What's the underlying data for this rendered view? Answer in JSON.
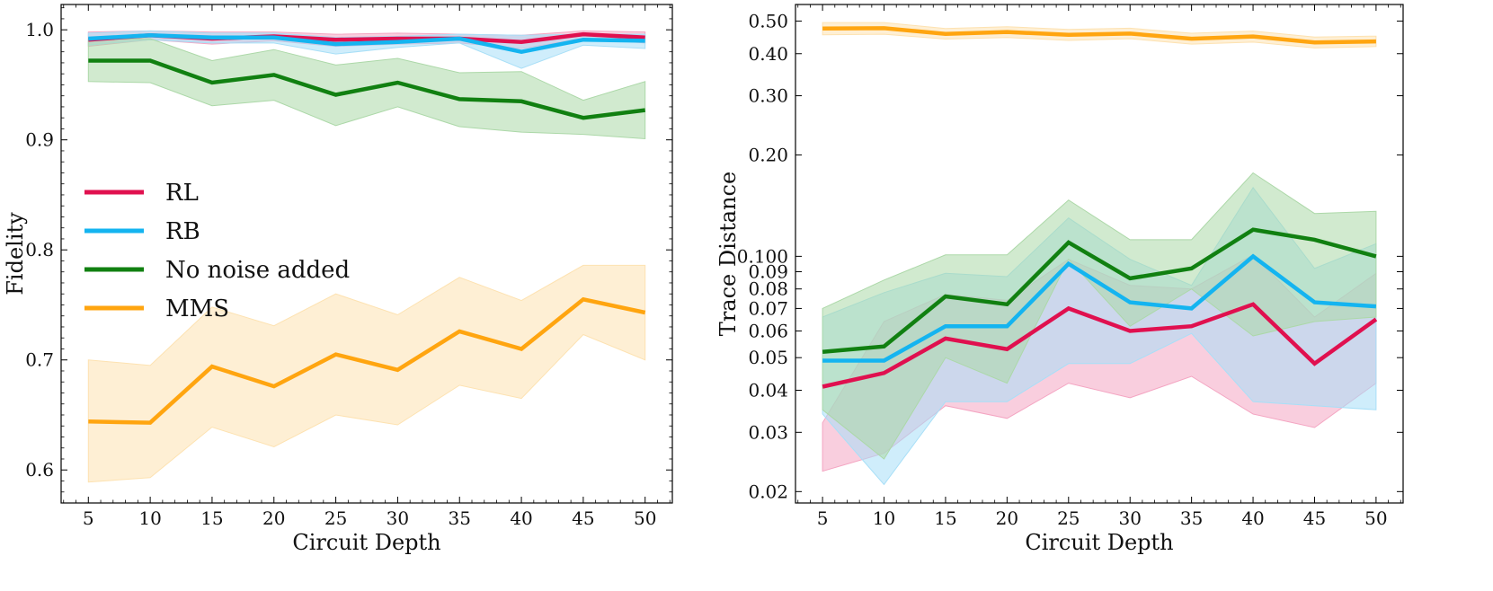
{
  "chart_data": [
    {
      "type": "line",
      "title": "",
      "xlabel": "Circuit Depth",
      "ylabel": "Fidelity",
      "yscale": "linear",
      "xlim": [
        2.8,
        52.2
      ],
      "ylim": [
        0.57,
        1.023
      ],
      "x_ticks": [
        5,
        10,
        15,
        20,
        25,
        30,
        35,
        40,
        45,
        50
      ],
      "y_ticks": [
        0.6,
        0.7,
        0.8,
        0.9,
        1.0
      ],
      "y_tick_labels": [
        "0.6",
        "0.7",
        "0.8",
        "0.9",
        "1.0"
      ],
      "legend_position": "center-left",
      "x": [
        5,
        10,
        15,
        20,
        25,
        30,
        35,
        40,
        45,
        50
      ],
      "series": [
        {
          "name": "RL",
          "color": "#e0104f",
          "fill": "#f4a5c2",
          "values": [
            0.991,
            0.995,
            0.992,
            0.994,
            0.991,
            0.992,
            0.992,
            0.989,
            0.996,
            0.993
          ],
          "lower": [
            0.985,
            0.991,
            0.987,
            0.99,
            0.985,
            0.987,
            0.988,
            0.983,
            0.992,
            0.988
          ],
          "upper": [
            0.998,
            0.999,
            0.998,
            0.998,
            0.996,
            0.997,
            0.996,
            0.995,
            0.999,
            0.998
          ]
        },
        {
          "name": "RB",
          "color": "#14b4f0",
          "fill": "#a8dff7",
          "values": [
            0.992,
            0.995,
            0.993,
            0.993,
            0.987,
            0.989,
            0.992,
            0.98,
            0.991,
            0.99
          ],
          "lower": [
            0.986,
            0.991,
            0.988,
            0.988,
            0.978,
            0.984,
            0.988,
            0.965,
            0.986,
            0.983
          ],
          "upper": [
            0.997,
            0.999,
            0.997,
            0.997,
            0.993,
            0.994,
            0.996,
            0.995,
            0.996,
            0.996
          ]
        },
        {
          "name": "No noise added",
          "color": "#118011",
          "fill": "#acd8a8",
          "values": [
            0.972,
            0.972,
            0.952,
            0.959,
            0.941,
            0.952,
            0.937,
            0.935,
            0.92,
            0.927
          ],
          "lower": [
            0.953,
            0.952,
            0.931,
            0.936,
            0.913,
            0.93,
            0.912,
            0.907,
            0.905,
            0.901
          ],
          "upper": [
            0.991,
            0.992,
            0.972,
            0.982,
            0.968,
            0.974,
            0.961,
            0.962,
            0.936,
            0.953
          ]
        },
        {
          "name": "MMS",
          "color": "#ffa510",
          "fill": "#fde2b1",
          "values": [
            0.644,
            0.643,
            0.694,
            0.676,
            0.705,
            0.691,
            0.726,
            0.71,
            0.755,
            0.743
          ],
          "lower": [
            0.589,
            0.593,
            0.639,
            0.621,
            0.65,
            0.641,
            0.677,
            0.665,
            0.723,
            0.7
          ],
          "upper": [
            0.7,
            0.695,
            0.748,
            0.731,
            0.76,
            0.741,
            0.775,
            0.754,
            0.786,
            0.786
          ]
        }
      ]
    },
    {
      "type": "line",
      "title": "",
      "xlabel": "Circuit Depth",
      "ylabel": "Trace Distance",
      "yscale": "log",
      "xlim": [
        2.8,
        52.2
      ],
      "ylim": [
        0.0185,
        0.56
      ],
      "x_ticks": [
        5,
        10,
        15,
        20,
        25,
        30,
        35,
        40,
        45,
        50
      ],
      "y_ticks": [
        0.02,
        0.03,
        0.04,
        0.05,
        0.06,
        0.07,
        0.08,
        0.09,
        0.1,
        0.2,
        0.3,
        0.4,
        0.5
      ],
      "y_tick_labels": [
        "0.02",
        "0.03",
        "0.04",
        "0.05",
        "0.06",
        "0.07",
        "0.08",
        "0.09",
        "0.100",
        "0.20",
        "0.30",
        "0.40",
        "0.50"
      ],
      "legend_position": "none",
      "x": [
        5,
        10,
        15,
        20,
        25,
        30,
        35,
        40,
        45,
        50
      ],
      "series": [
        {
          "name": "RL",
          "color": "#e0104f",
          "fill": "#f4a5c2",
          "values": [
            0.041,
            0.045,
            0.057,
            0.053,
            0.07,
            0.06,
            0.062,
            0.072,
            0.048,
            0.065
          ],
          "lower": [
            0.023,
            0.026,
            0.036,
            0.033,
            0.042,
            0.038,
            0.044,
            0.034,
            0.031,
            0.042
          ],
          "upper": [
            0.032,
            0.064,
            0.077,
            0.074,
            0.098,
            0.082,
            0.08,
            0.101,
            0.066,
            0.089
          ]
        },
        {
          "name": "RB",
          "color": "#14b4f0",
          "fill": "#a8dff7",
          "values": [
            0.049,
            0.049,
            0.062,
            0.062,
            0.095,
            0.073,
            0.07,
            0.1,
            0.073,
            0.071
          ],
          "lower": [
            0.034,
            0.021,
            0.037,
            0.037,
            0.048,
            0.048,
            0.059,
            0.037,
            0.036,
            0.035
          ],
          "upper": [
            0.066,
            0.078,
            0.089,
            0.087,
            0.13,
            0.098,
            0.082,
            0.16,
            0.092,
            0.109
          ]
        },
        {
          "name": "No noise added",
          "color": "#118011",
          "fill": "#acd8a8",
          "values": [
            0.052,
            0.054,
            0.076,
            0.072,
            0.11,
            0.086,
            0.092,
            0.12,
            0.112,
            0.1
          ],
          "lower": [
            0.035,
            0.025,
            0.05,
            0.042,
            0.098,
            0.062,
            0.08,
            0.058,
            0.064,
            0.066
          ],
          "upper": [
            0.07,
            0.085,
            0.101,
            0.101,
            0.147,
            0.112,
            0.112,
            0.177,
            0.134,
            0.136
          ]
        },
        {
          "name": "MMS",
          "color": "#ffa510",
          "fill": "#fde2b1",
          "values": [
            0.475,
            0.476,
            0.458,
            0.464,
            0.455,
            0.459,
            0.443,
            0.45,
            0.432,
            0.435
          ],
          "lower": [
            0.455,
            0.457,
            0.442,
            0.447,
            0.438,
            0.443,
            0.427,
            0.433,
            0.416,
            0.42
          ],
          "upper": [
            0.495,
            0.495,
            0.475,
            0.481,
            0.472,
            0.476,
            0.46,
            0.467,
            0.448,
            0.451
          ]
        }
      ]
    }
  ]
}
